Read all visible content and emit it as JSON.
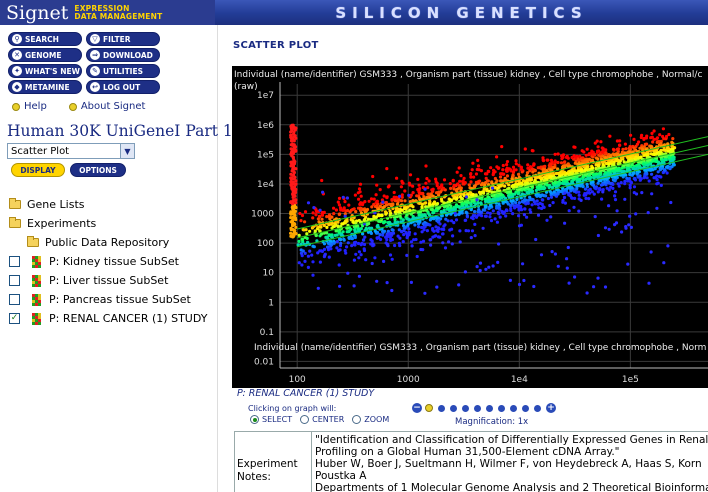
{
  "header": {
    "logo": "Signet",
    "tagline_line1": "EXPRESSION",
    "tagline_line2": "DATA MANAGEMENT",
    "brand": "SILICON GENETICS"
  },
  "nav": {
    "buttons": [
      {
        "label": "SEARCH",
        "icon": "search-icon",
        "glyph": "⚲"
      },
      {
        "label": "FILTER",
        "icon": "filter-icon",
        "glyph": "▽"
      },
      {
        "label": "GENOME",
        "icon": "genome-icon",
        "glyph": "✕"
      },
      {
        "label": "DOWNLOAD",
        "icon": "download-icon",
        "glyph": "⇒"
      },
      {
        "label": "WHAT'S NEW",
        "icon": "whats-new-icon",
        "glyph": "✦"
      },
      {
        "label": "UTILITIES",
        "icon": "utilities-icon",
        "glyph": "✎"
      },
      {
        "label": "METAMINE",
        "icon": "metamine-icon",
        "glyph": "◆"
      },
      {
        "label": "LOG OUT",
        "icon": "logout-icon",
        "glyph": "↩"
      }
    ],
    "help": "Help",
    "about": "About Signet"
  },
  "dataset": {
    "title": "Human 30K UniGeneI Part 1",
    "view_selected": "Scatter Plot",
    "display_label": "DISPLAY",
    "options_label": "OPTIONS"
  },
  "tree": {
    "gene_lists": "Gene Lists",
    "experiments": "Experiments",
    "repository": "Public Data Repository",
    "items": [
      {
        "label": "P: Kidney tissue SubSet",
        "checked": false
      },
      {
        "label": "P: Liver tissue SubSet",
        "checked": false
      },
      {
        "label": "P: Pancreas tissue SubSet",
        "checked": false
      },
      {
        "label": "P: RENAL CANCER (1) STUDY",
        "checked": true
      }
    ]
  },
  "main": {
    "page_title": "SCATTER PLOT",
    "study_label": "P: RENAL CANCER (1) STUDY",
    "click_hint": "Clicking on graph will:",
    "modes": [
      "SELECT",
      "CENTER",
      "ZOOM"
    ],
    "selected_mode": "SELECT",
    "magnification": "Magnification: 1x",
    "zoom_levels": 10,
    "zoom_current": 1,
    "notes_label_1": "Experiment",
    "notes_label_2": "Notes:",
    "notes_lines": [
      "\"Identification and Classification of Differentially Expressed Genes in Renal",
      "Profiling on a Global Human 31,500-Element cDNA Array.\"",
      "Huber W, Boer J, Sueltmann H, Wilmer F, von Heydebreck A, Haas S, Korn",
      "Poustka A",
      "Departments of 1 Molecular Genome Analysis and 2 Theoretical Bioinformat"
    ]
  },
  "chart_data": {
    "type": "scatter",
    "y_axis_title": "Individual (name/identifier) GSM333 , Organism part (tissue) kidney , Cell type chromophobe , Normal/c",
    "y_axis_title_line2": "(raw)",
    "x_axis_title": "Individual (name/identifier) GSM333 , Organism part (tissue) kidney , Cell type chromophobe , Norm",
    "x_scale": "log",
    "y_scale": "log",
    "x_ticks": [
      "100",
      "1000",
      "1e4",
      "1e5"
    ],
    "y_ticks": [
      "1e7",
      "1e6",
      "1e5",
      "1e4",
      "1000",
      "100",
      "10",
      "1",
      "0.1",
      "0.01"
    ],
    "xlim": [
      70,
      500000
    ],
    "ylim": [
      0.007,
      15000000
    ],
    "grid": true,
    "background": "#000000",
    "reference_lines_color": "#20c020",
    "color_gradient": [
      "#2222ff",
      "#00aaff",
      "#00ff66",
      "#ffff00",
      "#ff8800",
      "#ff0000"
    ],
    "trend": {
      "x_from": 100,
      "x_to": 500000,
      "y_at_100": 150,
      "y_at_500000": 200000
    }
  }
}
